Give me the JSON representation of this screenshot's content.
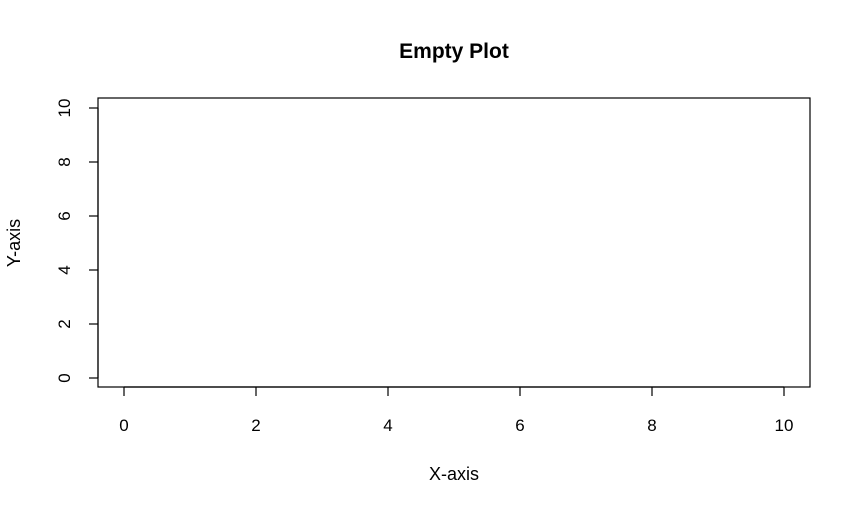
{
  "chart_data": {
    "type": "scatter",
    "title": "Empty Plot",
    "xlabel": "X-axis",
    "ylabel": "Y-axis",
    "xlim": [
      0,
      10
    ],
    "ylim": [
      0,
      10
    ],
    "x_ticks": [
      0,
      2,
      4,
      6,
      8,
      10
    ],
    "y_ticks": [
      0,
      2,
      4,
      6,
      8,
      10
    ],
    "series": [],
    "grid": false,
    "legend": "none"
  }
}
